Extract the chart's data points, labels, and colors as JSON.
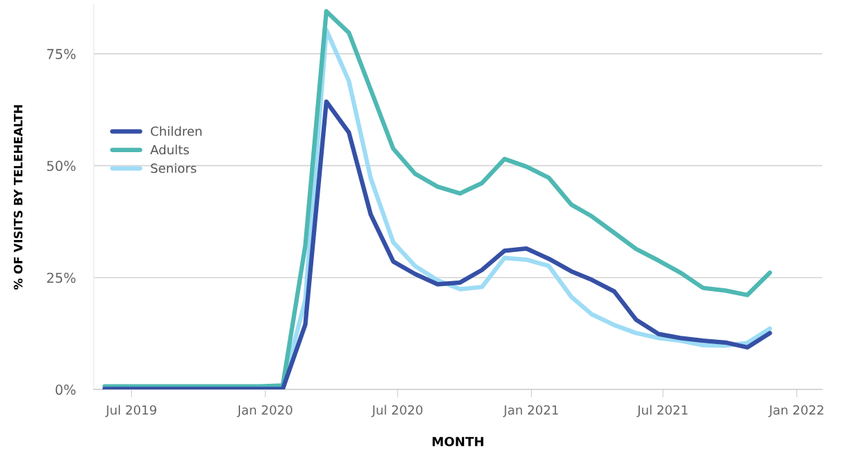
{
  "chart_data": {
    "type": "line",
    "xlabel": "MONTH",
    "ylabel": "% OF VISITS BY TELEHEALTH",
    "x": [
      "2019-05-25",
      "2019-06-25",
      "2019-07-25",
      "2019-08-25",
      "2019-09-25",
      "2019-10-25",
      "2019-11-25",
      "2019-12-25",
      "2020-01-25",
      "2020-02-25",
      "2020-03-25",
      "2020-04-25",
      "2020-05-25",
      "2020-06-25",
      "2020-07-25",
      "2020-08-25",
      "2020-09-25",
      "2020-10-25",
      "2020-11-25",
      "2020-12-25",
      "2021-01-25",
      "2021-02-25",
      "2021-03-25",
      "2021-04-25",
      "2021-05-25",
      "2021-06-25",
      "2021-07-25",
      "2021-08-25",
      "2021-09-25",
      "2021-10-25",
      "2021-11-25"
    ],
    "series": [
      {
        "name": "Children",
        "color": "#3550a5",
        "values": [
          0.1,
          0.1,
          0.1,
          0.1,
          0.1,
          0.1,
          0.1,
          0.1,
          0.1,
          14.5,
          64.3,
          57.4,
          39.1,
          28.6,
          25.8,
          23.5,
          23.9,
          26.7,
          31.0,
          31.5,
          29.2,
          26.4,
          24.5,
          21.9,
          15.6,
          12.4,
          11.5,
          10.9,
          10.5,
          9.4,
          12.6
        ]
      },
      {
        "name": "Adults",
        "color": "#4fb8b3",
        "values": [
          0.7,
          0.7,
          0.7,
          0.7,
          0.7,
          0.7,
          0.7,
          0.7,
          0.9,
          32.1,
          84.5,
          79.7,
          67.0,
          53.8,
          48.2,
          45.3,
          43.8,
          46.1,
          51.5,
          49.8,
          47.3,
          41.3,
          38.7,
          35.0,
          31.4,
          28.8,
          26.1,
          22.7,
          22.1,
          21.1,
          26.1
        ]
      },
      {
        "name": "Seniors",
        "color": "#9edcf5",
        "values": [
          null,
          null,
          null,
          null,
          null,
          null,
          null,
          null,
          0.5,
          20.0,
          80.3,
          68.9,
          47.2,
          32.9,
          27.6,
          24.4,
          22.4,
          22.9,
          29.4,
          29.0,
          27.6,
          20.7,
          16.8,
          14.4,
          12.6,
          11.5,
          10.9,
          9.9,
          9.8,
          10.4,
          13.6
        ]
      }
    ],
    "xlim": [
      "2019-05-10",
      "2022-02-05"
    ],
    "xticks": [
      {
        "value": "2019-07-01",
        "label": "Jul 2019"
      },
      {
        "value": "2020-01-01",
        "label": "Jan 2020"
      },
      {
        "value": "2020-07-01",
        "label": "Jul 2020"
      },
      {
        "value": "2021-01-01",
        "label": "Jan 2021"
      },
      {
        "value": "2021-07-01",
        "label": "Jul 2021"
      },
      {
        "value": "2022-01-01",
        "label": "Jan 2022"
      }
    ],
    "ylim": [
      0,
      86
    ],
    "yticks": [
      {
        "value": 0,
        "label": "0%"
      },
      {
        "value": 25,
        "label": "25%"
      },
      {
        "value": 50,
        "label": "50%"
      },
      {
        "value": 75,
        "label": "75%"
      }
    ],
    "grid": "y",
    "legend": "left",
    "marker": "none",
    "line_style": "solid"
  }
}
